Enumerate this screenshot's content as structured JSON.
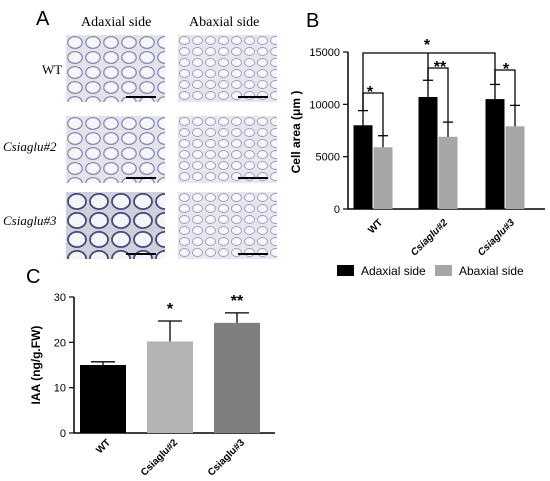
{
  "panel_a": {
    "letter": "A",
    "column_titles": [
      "Adaxial side",
      "Abaxial side"
    ],
    "row_labels": [
      "WT",
      "Csiaglu#2",
      "Csiaglu#3"
    ]
  },
  "panel_b": {
    "letter": "B",
    "colors": {
      "adaxial": "#000000",
      "abaxial": "#a6a6a6"
    }
  },
  "panel_c": {
    "letter": "C",
    "colors": [
      "#000000",
      "#b3b3b3",
      "#7f7f7f"
    ]
  },
  "chart_data": [
    {
      "type": "bar",
      "panel": "B",
      "categories": [
        "WT",
        "Csiaglu#2",
        "Csiaglu#3"
      ],
      "series": [
        {
          "name": "Adaxial side",
          "values": [
            8000,
            10700,
            10500
          ],
          "errors": [
            1400,
            1600,
            1400
          ]
        },
        {
          "name": "Abaxial side",
          "values": [
            5900,
            6900,
            7900
          ],
          "errors": [
            1100,
            1400,
            2000
          ]
        }
      ],
      "ylabel": "Cell area (μm )",
      "ylim": [
        0,
        15000
      ],
      "yticks": [
        "0",
        "5000",
        "10000",
        "15000"
      ],
      "legend": [
        "Adaxial side",
        "Abaxial side"
      ],
      "legend_position": "bottom",
      "annotations": [
        "*",
        "**",
        "*",
        "*"
      ]
    },
    {
      "type": "bar",
      "panel": "C",
      "categories": [
        "WT",
        "Csiaglu#2",
        "Csiaglu#3"
      ],
      "values": [
        15,
        20.2,
        24.3
      ],
      "errors": [
        0.7,
        4.5,
        2.2
      ],
      "ylabel": "IAA (ng/g.FW)",
      "ylim": [
        0,
        30
      ],
      "yticks": [
        "0",
        "10",
        "20",
        "30"
      ],
      "annotations": [
        "",
        "*",
        "**"
      ]
    }
  ]
}
